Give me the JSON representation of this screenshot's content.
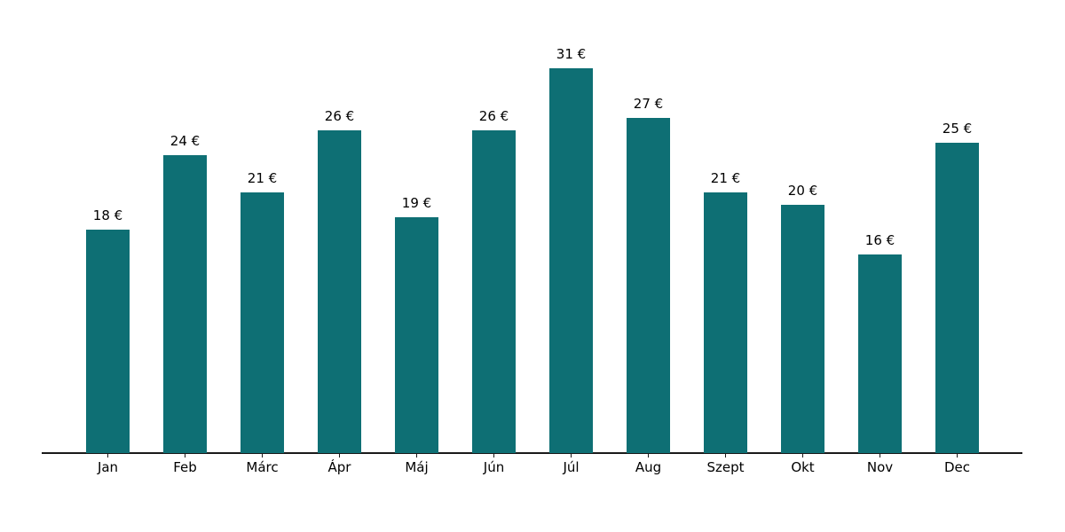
{
  "chart_data": {
    "type": "bar",
    "title": "",
    "xlabel": "",
    "ylabel": "",
    "categories": [
      "Jan",
      "Feb",
      "Márc",
      "Ápr",
      "Máj",
      "Jún",
      "Júl",
      "Aug",
      "Szept",
      "Okt",
      "Nov",
      "Dec"
    ],
    "values": [
      18,
      24,
      21,
      26,
      19,
      26,
      31,
      27,
      21,
      20,
      16,
      25
    ],
    "value_labels": [
      "18 €",
      "24 €",
      "21 €",
      "26 €",
      "19 €",
      "26 €",
      "31 €",
      "27 €",
      "21 €",
      "20 €",
      "16 €",
      "25 €"
    ],
    "unit": "€",
    "ylim": [
      0,
      31
    ],
    "grid": false,
    "legend": false,
    "bar_color": "#0e6f74",
    "axis_color": "#1a1a1a",
    "text_color": "#000000"
  }
}
